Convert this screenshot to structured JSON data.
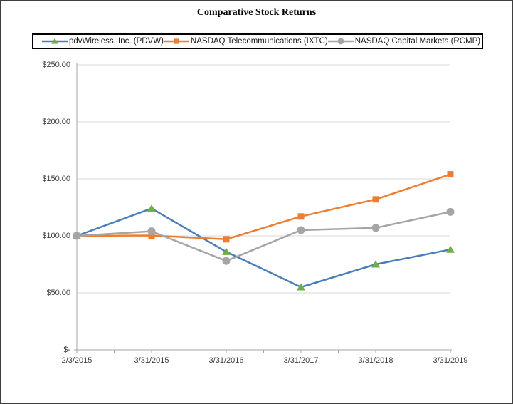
{
  "chart": {
    "title": "Comparative Stock Returns"
  },
  "chart_data": {
    "type": "line",
    "title": "Comparative Stock Returns",
    "categories": [
      "2/3/2015",
      "3/31/2015",
      "3/31/2016",
      "3/31/2017",
      "3/31/2018",
      "3/31/2019"
    ],
    "series": [
      {
        "name": "pdvWireless, Inc. (PDVW)",
        "values": [
          100,
          124,
          86,
          55,
          75,
          88
        ],
        "line_color": "#4A7EBB",
        "marker": "triangle",
        "marker_color": "#70AD47"
      },
      {
        "name": "NASDAQ Telecommunications (IXTC)",
        "values": [
          100,
          100.3,
          97,
          117,
          132,
          154
        ],
        "line_color": "#ED7D31",
        "marker": "square",
        "marker_color": "#ED7D31"
      },
      {
        "name": "NASDAQ Capital Markets (RCMP)",
        "values": [
          100,
          104,
          78,
          105,
          107,
          121
        ],
        "line_color": "#A5A5A5",
        "marker": "circle",
        "marker_color": "#A5A5A5"
      }
    ],
    "ylim": [
      0,
      250
    ],
    "y_ticks": [
      {
        "value": 250,
        "label": "$250.00"
      },
      {
        "value": 200,
        "label": "$200.00"
      },
      {
        "value": 150,
        "label": "$150.00"
      },
      {
        "value": 100,
        "label": "$100.00"
      },
      {
        "value": 50,
        "label": "$50.00"
      },
      {
        "value": 0,
        "label": "$-"
      }
    ],
    "grid": true,
    "legend_position": "top",
    "gridline_color": "#D9D9D9",
    "axis_color": "#A6A6A6",
    "label_color": "#404040"
  }
}
